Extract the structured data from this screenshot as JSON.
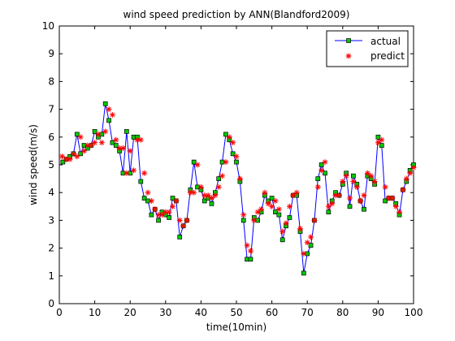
{
  "chart_data": {
    "type": "line",
    "title": "wind speed prediction by ANN(Blandford2009)",
    "xlabel": "time(10min)",
    "ylabel": "wind speed(m/s)",
    "xlim": [
      0,
      100
    ],
    "ylim": [
      0,
      10
    ],
    "xticks": [
      0,
      10,
      20,
      30,
      40,
      50,
      60,
      70,
      80,
      90,
      100
    ],
    "yticks": [
      0,
      1,
      2,
      3,
      4,
      5,
      6,
      7,
      8,
      9,
      10
    ],
    "grid": false,
    "legend_position": "top-right",
    "series": [
      {
        "name": "actual",
        "style": "line-square-marker",
        "line_color": "#0000ff",
        "marker_fill": "#00cc00",
        "marker_edge": "#000000",
        "x": [
          1,
          2,
          3,
          4,
          5,
          6,
          7,
          8,
          9,
          10,
          11,
          12,
          13,
          14,
          15,
          16,
          17,
          18,
          19,
          20,
          21,
          22,
          23,
          24,
          25,
          26,
          27,
          28,
          29,
          30,
          31,
          32,
          33,
          34,
          35,
          36,
          37,
          38,
          39,
          40,
          41,
          42,
          43,
          44,
          45,
          46,
          47,
          48,
          49,
          50,
          51,
          52,
          53,
          54,
          55,
          56,
          57,
          58,
          59,
          60,
          61,
          62,
          63,
          64,
          65,
          66,
          67,
          68,
          69,
          70,
          71,
          72,
          73,
          74,
          75,
          76,
          77,
          78,
          79,
          80,
          81,
          82,
          83,
          84,
          85,
          86,
          87,
          88,
          89,
          90,
          91,
          92,
          93,
          94,
          95,
          96,
          97,
          98,
          99,
          100
        ],
        "y": [
          5.1,
          5.2,
          5.3,
          5.4,
          6.1,
          5.4,
          5.7,
          5.6,
          5.7,
          6.2,
          6.0,
          6.1,
          7.2,
          6.6,
          5.8,
          5.7,
          5.5,
          4.7,
          6.2,
          4.7,
          6.0,
          6.0,
          4.4,
          3.8,
          3.7,
          3.2,
          3.4,
          3.0,
          3.3,
          3.2,
          3.1,
          3.8,
          3.7,
          2.4,
          2.8,
          3.0,
          4.1,
          5.1,
          4.2,
          4.1,
          3.7,
          3.8,
          3.6,
          4.0,
          4.5,
          5.1,
          6.1,
          5.9,
          5.4,
          5.1,
          4.4,
          3.0,
          1.6,
          1.6,
          3.1,
          3.0,
          3.3,
          3.9,
          3.7,
          3.8,
          3.3,
          3.2,
          2.3,
          2.8,
          3.1,
          3.9,
          3.9,
          2.6,
          1.1,
          1.8,
          2.1,
          3.0,
          4.5,
          5.0,
          4.7,
          3.3,
          3.7,
          4.0,
          3.9,
          4.3,
          4.7,
          3.5,
          4.6,
          4.3,
          3.7,
          3.4,
          4.6,
          4.5,
          4.3,
          6.0,
          5.7,
          3.7,
          3.8,
          3.8,
          3.6,
          3.2,
          4.1,
          4.4,
          4.8,
          5.0
        ]
      },
      {
        "name": "predict",
        "style": "star-marker",
        "marker_color": "#ff0000",
        "x": [
          0.8,
          2,
          3,
          4,
          5,
          6,
          7,
          8,
          9,
          10,
          11,
          12,
          13,
          14,
          15,
          16,
          17,
          18,
          19,
          20,
          21,
          22,
          23,
          24,
          25,
          26,
          27,
          28,
          29,
          30,
          31,
          32,
          33,
          34,
          35,
          36,
          37,
          38,
          39,
          40,
          41,
          42,
          43,
          44,
          45,
          46,
          47,
          48,
          49,
          50,
          51,
          52,
          53,
          54,
          55,
          56,
          57,
          58,
          59,
          60,
          61,
          62,
          63,
          64,
          65,
          66,
          67,
          68,
          69,
          70,
          71,
          72,
          73,
          74,
          75,
          76,
          77,
          78,
          79,
          80,
          81,
          82,
          83,
          84,
          85,
          86,
          87,
          88,
          89,
          90,
          91,
          92,
          93,
          94,
          95,
          96,
          97,
          98,
          99,
          100
        ],
        "y": [
          5.3,
          5.2,
          5.2,
          5.4,
          5.3,
          6.0,
          5.5,
          5.7,
          5.7,
          5.8,
          6.1,
          5.8,
          6.2,
          7.0,
          6.8,
          5.9,
          5.6,
          5.6,
          4.7,
          5.5,
          4.8,
          5.9,
          5.9,
          4.7,
          4.0,
          3.7,
          3.4,
          3.2,
          3.2,
          3.3,
          3.3,
          3.5,
          3.7,
          3.0,
          2.8,
          3.0,
          4.0,
          4.0,
          5.0,
          4.2,
          3.9,
          3.9,
          3.8,
          3.9,
          4.2,
          4.6,
          5.1,
          6.0,
          5.8,
          5.3,
          4.5,
          3.2,
          2.1,
          1.9,
          3.0,
          3.3,
          3.4,
          4.0,
          3.6,
          3.5,
          3.7,
          3.4,
          2.6,
          2.9,
          3.5,
          3.9,
          4.0,
          2.7,
          1.8,
          2.2,
          2.4,
          3.0,
          4.2,
          4.8,
          5.1,
          3.5,
          3.6,
          3.9,
          3.9,
          4.4,
          4.6,
          3.8,
          4.4,
          4.2,
          3.7,
          3.9,
          4.7,
          4.6,
          4.4,
          5.8,
          5.9,
          4.2,
          3.8,
          3.8,
          3.5,
          3.3,
          4.1,
          4.5,
          4.7,
          4.9
        ]
      }
    ]
  }
}
